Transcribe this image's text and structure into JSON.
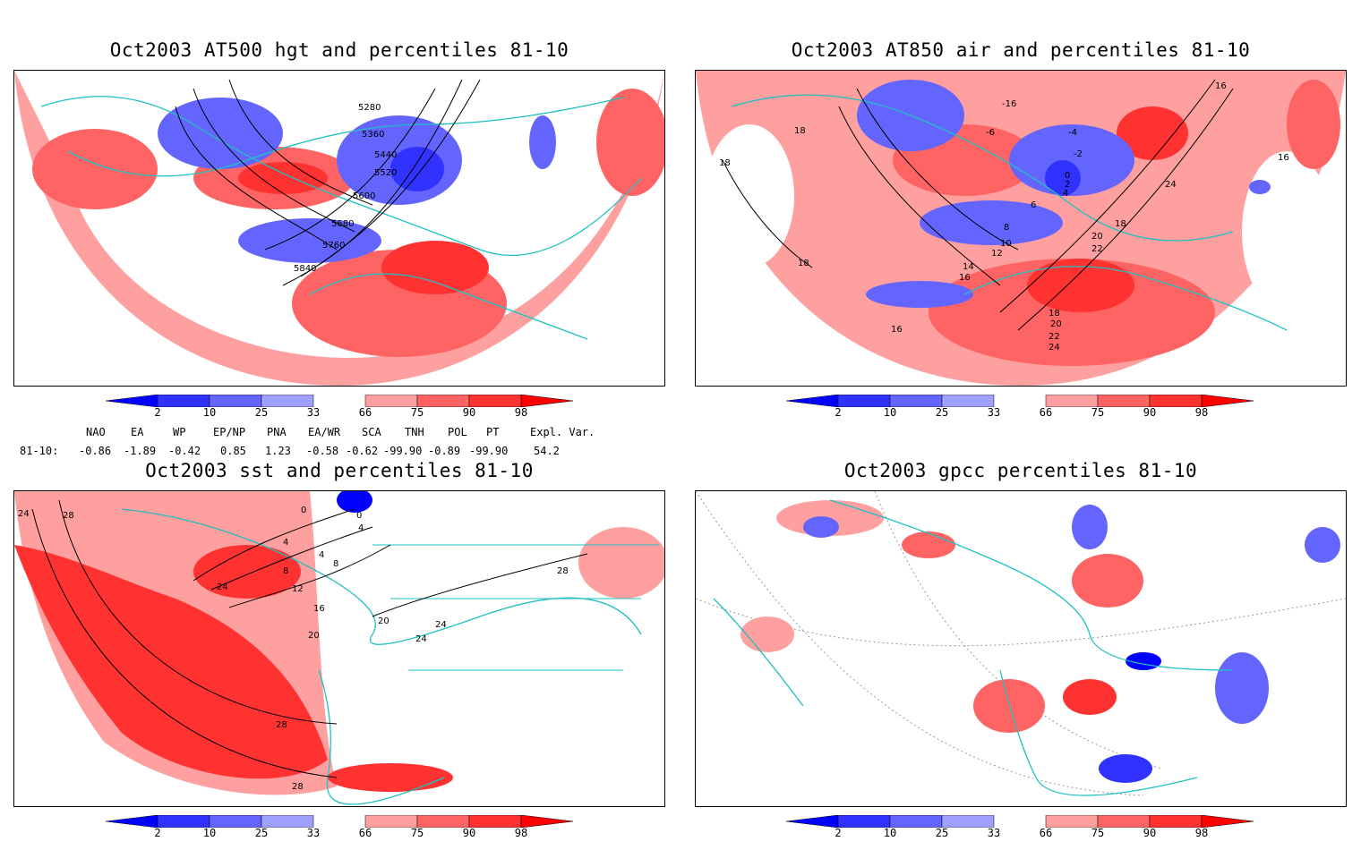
{
  "panels": [
    {
      "title": "Oct2003 AT500 hgt and percentiles 81-10",
      "contour_labels": [
        "5280",
        "5360",
        "5440",
        "5520",
        "5600",
        "5680",
        "5760",
        "5840"
      ]
    },
    {
      "title": "Oct2003 AT850 air and percentiles 81-10",
      "contour_labels": [
        "18",
        "-16",
        "-6",
        "-4",
        "-2",
        "0",
        "2",
        "4",
        "6",
        "8",
        "10",
        "12",
        "14",
        "16",
        "18",
        "20",
        "22",
        "24",
        "16",
        "18",
        "20",
        "22",
        "24",
        "18",
        "16",
        "18",
        "16"
      ]
    },
    {
      "title": "Oct2003 sst and percentiles 81-10",
      "contour_labels": [
        "24",
        "28",
        "0",
        "0",
        "4",
        "4",
        "4",
        "8",
        "8",
        "12",
        "24",
        "16",
        "20",
        "20",
        "24",
        "24",
        "28",
        "28",
        "28"
      ]
    },
    {
      "title": "Oct2003 gpcc percentiles 81-10",
      "contour_labels": []
    }
  ],
  "colorbar": {
    "ticks": [
      "2",
      "10",
      "25",
      "33",
      "66",
      "75",
      "90",
      "98"
    ],
    "colors": [
      "#0000ff",
      "#3232ff",
      "#6464ff",
      "#a0a0ff",
      "#ffa0a0",
      "#ff6464",
      "#ff3232",
      "#ff0000"
    ]
  },
  "teleconnections": {
    "headers": [
      "NAO",
      "EA",
      "WP",
      "EP/NP",
      "PNA",
      "EA/WR",
      "SCA",
      "TNH",
      "POL",
      "PT",
      "Expl. Var."
    ],
    "row_label": "81-10:",
    "values": [
      "-0.86",
      "-1.89",
      "-0.42",
      "0.85",
      "1.23",
      "-0.58",
      "-0.62",
      "-99.90",
      "-0.89",
      "-99.90",
      "54.2"
    ]
  }
}
